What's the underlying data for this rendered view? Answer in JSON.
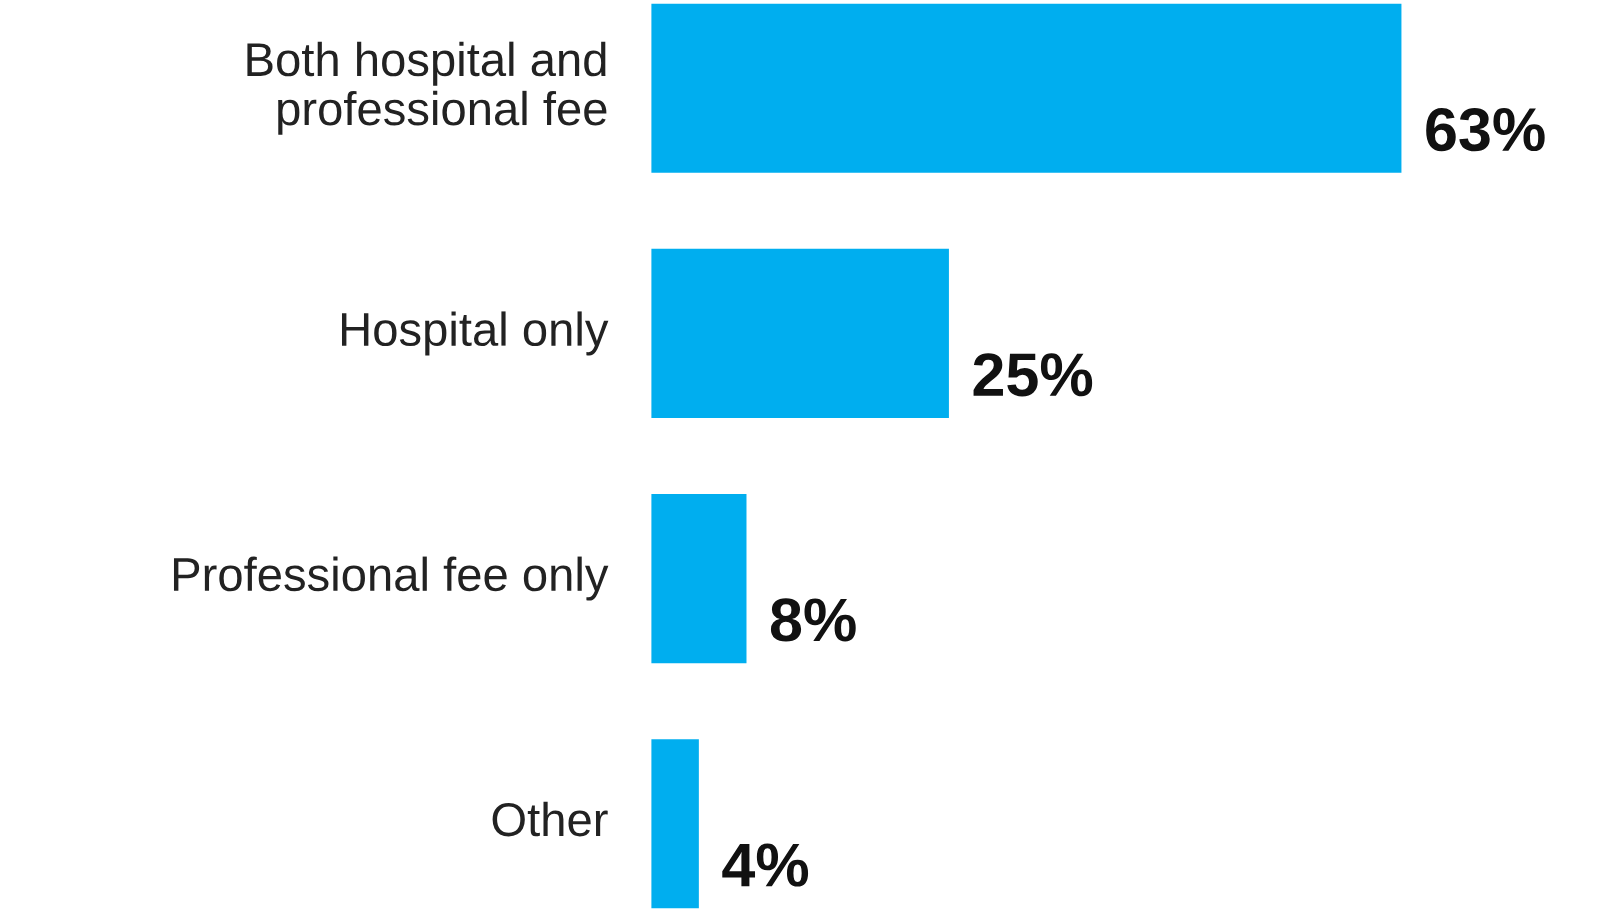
{
  "chart_data": {
    "type": "bar",
    "orientation": "horizontal",
    "categories": [
      "Both hospital and\nprofessional fee",
      "Hospital only",
      "Professional fee only",
      "Other"
    ],
    "values": [
      63,
      25,
      8,
      4
    ],
    "value_labels": [
      "63%",
      "25%",
      "8%",
      "4%"
    ],
    "color": "#00aeef"
  }
}
